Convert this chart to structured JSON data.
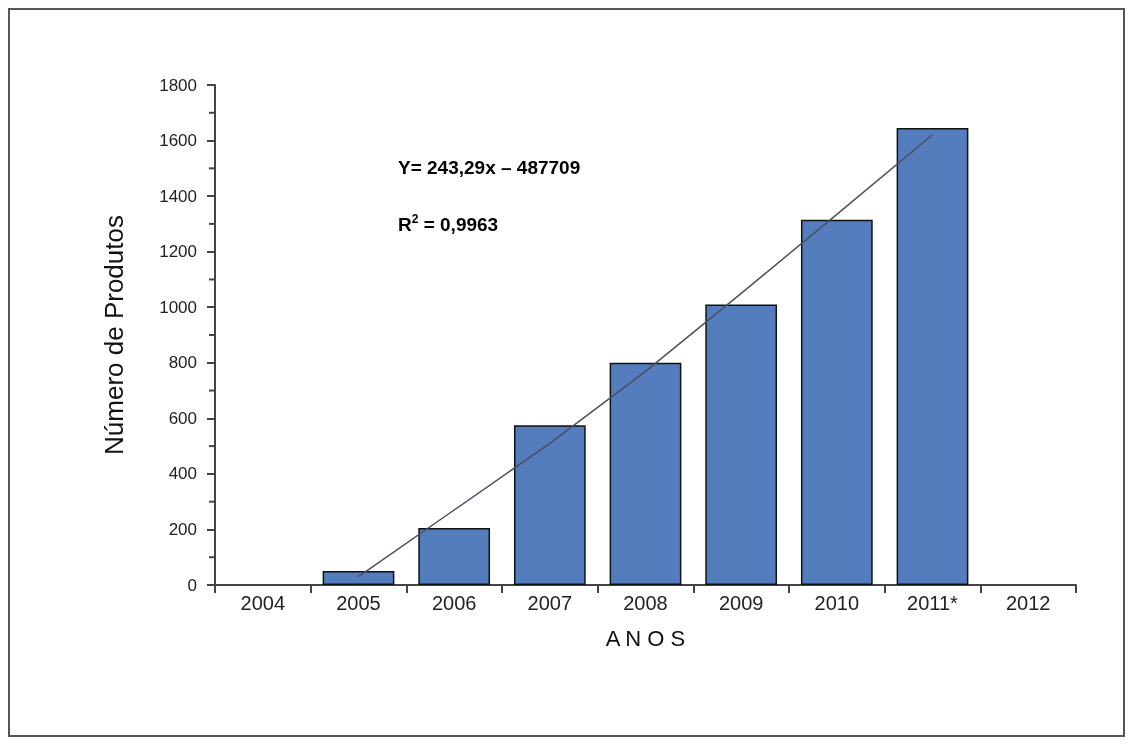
{
  "chart_data": {
    "type": "bar",
    "xlabel": "A N O S",
    "ylabel": "Número de Produtos",
    "categories": [
      "2004",
      "2005",
      "2006",
      "2007",
      "2008",
      "2009",
      "2010",
      "2011*",
      "2012"
    ],
    "series": [
      {
        "color": "#547dbd",
        "values": [
          null,
          50,
          205,
          575,
          800,
          1010,
          1315,
          1645,
          null
        ]
      },
      {
        "type": "line",
        "color": "#4a4f66",
        "values": [
          null,
          30,
          270,
          510,
          769,
          1050,
          1334,
          1621,
          null
        ]
      }
    ],
    "ylim": [
      0,
      1800
    ],
    "yticks": [
      0,
      200,
      400,
      600,
      800,
      1000,
      1200,
      1400,
      1600,
      1800
    ],
    "annotations": [
      "Y= 243,29x – 487709",
      "R$^{2}$ = 0,9963"
    ],
    "grid": false,
    "marker": "none",
    "line_style": "solid"
  }
}
